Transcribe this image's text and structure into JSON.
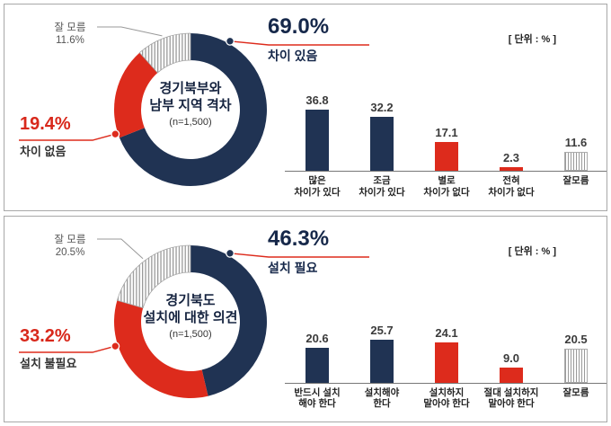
{
  "unit_label": "[ 단위 : % ]",
  "colors": {
    "navy": "#203353",
    "red": "#dd2b1c",
    "stripe_line": "#9a9a9a"
  },
  "chart_data": [
    {
      "id": "donut-top",
      "type": "pie",
      "title": [
        "경기북부와",
        "남부 지역 격차"
      ],
      "sample": "(n=1,500)",
      "segments": [
        {
          "label": "차이 있음",
          "value": 69.0,
          "pct": "69.0%",
          "color": "navy"
        },
        {
          "label": "차이 없음",
          "value": 19.4,
          "pct": "19.4%",
          "color": "red"
        },
        {
          "label": "잘 모름",
          "value": 11.6,
          "pct": "11.6%",
          "color": "stripe"
        }
      ]
    },
    {
      "id": "bar-top",
      "type": "bar",
      "ylim": [
        0,
        45
      ],
      "categories": [
        [
          "많은",
          "차이가 있다"
        ],
        [
          "조금",
          "차이가 있다"
        ],
        [
          "별로",
          "차이가 없다"
        ],
        [
          "전혀",
          "차이가 없다"
        ],
        [
          "잘모름"
        ]
      ],
      "values": [
        36.8,
        32.2,
        17.1,
        2.3,
        11.6
      ],
      "colors": [
        "navy",
        "navy",
        "red",
        "red",
        "stripe"
      ]
    },
    {
      "id": "donut-bottom",
      "type": "pie",
      "title": [
        "경기북도",
        "설치에 대한 의견"
      ],
      "sample": "(n=1,500)",
      "segments": [
        {
          "label": "설치 필요",
          "value": 46.3,
          "pct": "46.3%",
          "color": "navy"
        },
        {
          "label": "설치 불필요",
          "value": 33.2,
          "pct": "33.2%",
          "color": "red"
        },
        {
          "label": "잘 모름",
          "value": 20.5,
          "pct": "20.5%",
          "color": "stripe"
        }
      ]
    },
    {
      "id": "bar-bottom",
      "type": "bar",
      "ylim": [
        0,
        45
      ],
      "categories": [
        [
          "반드시 설치",
          "해야 한다"
        ],
        [
          "설치해야",
          "한다"
        ],
        [
          "설치하지",
          "말아야 한다"
        ],
        [
          "절대 설치하지",
          "말아야 한다"
        ],
        [
          "잘모름"
        ]
      ],
      "values": [
        20.6,
        25.7,
        24.1,
        9.0,
        20.5
      ],
      "colors": [
        "navy",
        "navy",
        "red",
        "red",
        "stripe"
      ]
    }
  ]
}
